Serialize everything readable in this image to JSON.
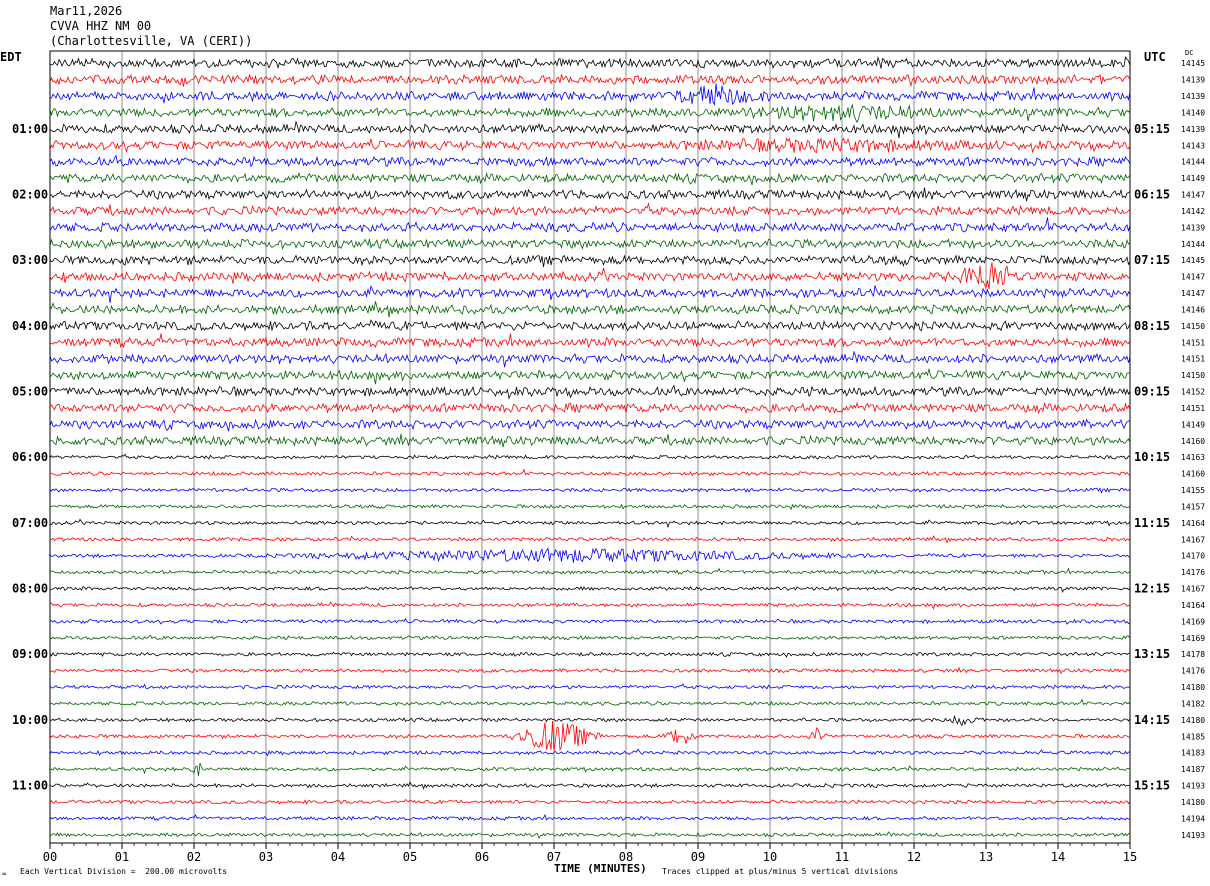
{
  "header": {
    "date": "Mar11,2026",
    "station": "CVVA HHZ NM 00",
    "location": "(Charlottesville, VA (CERI))"
  },
  "labels": {
    "left_zone": "EDT",
    "right_zone": "UTC",
    "dc_header": "DC",
    "corner_mark": "≈"
  },
  "footer": {
    "vertical_division": "Each Vertical Division =  200.00 microvolts",
    "xlabel": "TIME (MINUTES)",
    "clip_note": "Traces clipped at plus/minus 5 vertical divisions"
  },
  "colors": {
    "trace_cycle": [
      "#000000",
      "#ff0000",
      "#0000ff",
      "#006400"
    ],
    "grid": "#000000"
  },
  "chart_data": {
    "type": "line",
    "x_range_minutes": [
      0,
      15
    ],
    "x_ticks": [
      "00",
      "01",
      "02",
      "03",
      "04",
      "05",
      "06",
      "07",
      "08",
      "09",
      "10",
      "11",
      "12",
      "13",
      "14",
      "15"
    ],
    "rows_per_hour": 4,
    "row_minutes": 15,
    "left_hour_labels": [
      "01:00",
      "02:00",
      "03:00",
      "04:00",
      "05:00",
      "06:00",
      "07:00",
      "08:00",
      "09:00",
      "10:00",
      "11:00"
    ],
    "right_hour_labels": [
      "05:15",
      "06:15",
      "07:15",
      "08:15",
      "09:15",
      "10:15",
      "11:15",
      "12:15",
      "13:15",
      "14:15",
      "15:15"
    ],
    "dc_values": [
      "14145",
      "14139",
      "14139",
      "14140",
      "14139",
      "14143",
      "14144",
      "14149",
      "14147",
      "14142",
      "14139",
      "14144",
      "14145",
      "14147",
      "14147",
      "14146",
      "14150",
      "14151",
      "14151",
      "14150",
      "14152",
      "14151",
      "14149",
      "14160",
      "14163",
      "14160",
      "14155",
      "14157",
      "14164",
      "14167",
      "14170",
      "14176",
      "14167",
      "14164",
      "14169",
      "14169",
      "14178",
      "14176",
      "14180",
      "14182",
      "14180",
      "14185",
      "14183",
      "14187",
      "14193",
      "14180",
      "14194",
      "14193"
    ],
    "noise_amplitude_relative": [
      5,
      5,
      5,
      5,
      5,
      5,
      5,
      5,
      5,
      5,
      5,
      5,
      5,
      5,
      5,
      5,
      5,
      5,
      5,
      5,
      5,
      5,
      5,
      5,
      2,
      2,
      2,
      2,
      2,
      2,
      2,
      2,
      2,
      2,
      2,
      2,
      2,
      2,
      2,
      2,
      2,
      2,
      2,
      2,
      2,
      2,
      2,
      2
    ],
    "events": [
      {
        "row": 2,
        "start_min": 8.5,
        "end_min": 10.0,
        "amplitude": 8
      },
      {
        "row": 3,
        "start_min": 9.5,
        "end_min": 12.5,
        "amplitude": 6
      },
      {
        "row": 5,
        "start_min": 8.5,
        "end_min": 13.0,
        "amplitude": 4
      },
      {
        "row": 13,
        "start_min": 12.5,
        "end_min": 13.5,
        "amplitude": 14
      },
      {
        "row": 30,
        "start_min": 3.0,
        "end_min": 11.5,
        "amplitude": 6
      },
      {
        "row": 40,
        "start_min": 12.5,
        "end_min": 12.9,
        "amplitude": 8
      },
      {
        "row": 41,
        "start_min": 6.3,
        "end_min": 7.7,
        "amplitude": 16
      },
      {
        "row": 41,
        "start_min": 8.5,
        "end_min": 9.0,
        "amplitude": 10
      },
      {
        "row": 41,
        "start_min": 10.5,
        "end_min": 10.8,
        "amplitude": 8
      },
      {
        "row": 43,
        "start_min": 1.9,
        "end_min": 2.2,
        "amplitude": 6
      }
    ]
  }
}
